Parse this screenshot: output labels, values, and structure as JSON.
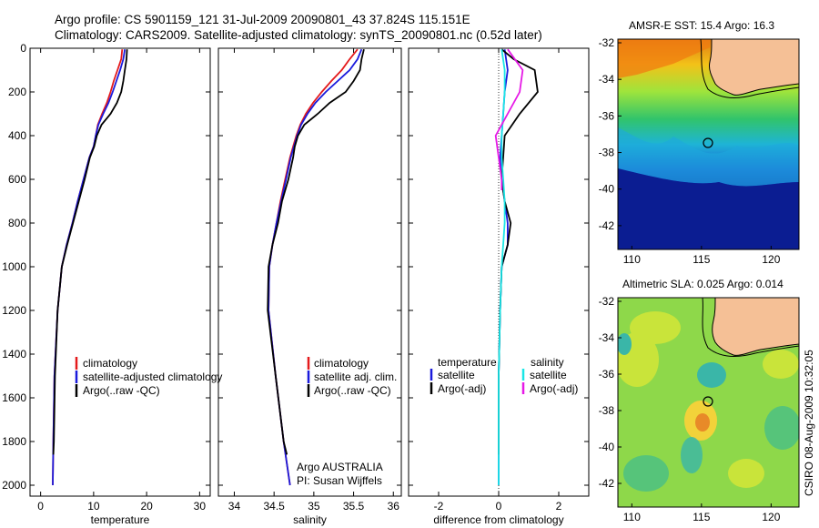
{
  "header": {
    "line1": "Argo profile: CS 5901159_121 31-Jul-2009 20090801_43 37.824S 115.151E",
    "line2": "Climatology: CARS2009. Satellite-adjusted climatology: synTS_20090801.nc (0.52d later)"
  },
  "footer": {
    "stamp": "CSIRO 08-Aug-2009 10:32:05"
  },
  "colors": {
    "climatology": "#e41a1c",
    "satellite": "#1a1adc",
    "argo": "#000000",
    "satellite_diff_salinity": "#19e6e6",
    "argo_diff_salinity": "#e619e6",
    "land": "#f5c096",
    "ocean_deep": "#0a1a8c"
  },
  "chart_data": [
    {
      "type": "line",
      "name": "temperature-profile",
      "xlabel": "temperature",
      "ylabel": "",
      "xlim": [
        -2,
        32
      ],
      "ylim": [
        2050,
        0
      ],
      "xticks": [
        0,
        10,
        20,
        30
      ],
      "yticks": [
        0,
        200,
        400,
        600,
        800,
        1000,
        1200,
        1400,
        1600,
        1800,
        2000
      ],
      "legend": [
        "climatology",
        "satellite-adjusted climatology",
        "Argo(..raw -QC)"
      ],
      "series": [
        {
          "name": "climatology",
          "color": "#e41a1c",
          "x": [
            15.4,
            15.2,
            14.5,
            13.8,
            13.2,
            12.5,
            11.6,
            10.8,
            10.4,
            10.0,
            9.2,
            8.1,
            7.0,
            6.0,
            4.9,
            4.0,
            3.2,
            2.6,
            2.4,
            2.3
          ],
          "y": [
            5,
            50,
            100,
            150,
            200,
            250,
            300,
            350,
            400,
            450,
            500,
            600,
            700,
            800,
            900,
            1000,
            1200,
            1500,
            1800,
            2000
          ]
        },
        {
          "name": "satellite-adjusted climatology",
          "color": "#1a1adc",
          "x": [
            15.9,
            15.6,
            15.0,
            14.3,
            13.6,
            12.8,
            11.8,
            10.9,
            10.4,
            10.0,
            9.2,
            8.1,
            7.0,
            6.0,
            4.9,
            4.0,
            3.2,
            2.6,
            2.4,
            2.3
          ],
          "y": [
            5,
            50,
            100,
            150,
            200,
            250,
            300,
            350,
            400,
            450,
            500,
            600,
            700,
            800,
            900,
            1000,
            1200,
            1500,
            1800,
            2000
          ]
        },
        {
          "name": "Argo(..raw -QC)",
          "color": "#000000",
          "x": [
            16.3,
            16.2,
            15.9,
            15.6,
            15.2,
            14.4,
            13.2,
            11.5,
            10.6,
            10.1,
            9.3,
            8.3,
            7.2,
            6.1,
            5.0,
            4.0,
            3.2,
            2.7,
            2.5,
            2.4
          ],
          "y": [
            5,
            50,
            100,
            150,
            200,
            250,
            300,
            350,
            400,
            450,
            500,
            600,
            700,
            800,
            900,
            1000,
            1200,
            1500,
            1800,
            1860
          ]
        }
      ]
    },
    {
      "type": "line",
      "name": "salinity-profile",
      "xlabel": "salinity",
      "ylabel": "",
      "xlim": [
        33.8,
        36.1
      ],
      "ylim": [
        2050,
        0
      ],
      "xticks": [
        34,
        34.5,
        35,
        35.5,
        36
      ],
      "legend": [
        "climatology",
        "satellite adj. clim.",
        "Argo(..raw -QC)"
      ],
      "annotation": [
        "Argo AUSTRALIA",
        "PI: Susan Wijffels"
      ],
      "series": [
        {
          "name": "climatology",
          "color": "#e41a1c",
          "x": [
            35.55,
            35.45,
            35.35,
            35.22,
            35.1,
            34.99,
            34.9,
            34.83,
            34.78,
            34.74,
            34.7,
            34.64,
            34.58,
            34.53,
            34.48,
            34.44,
            34.43,
            34.52,
            34.62,
            34.7
          ],
          "y": [
            5,
            50,
            100,
            150,
            200,
            250,
            300,
            350,
            400,
            450,
            500,
            600,
            700,
            800,
            900,
            1000,
            1200,
            1500,
            1800,
            2000
          ]
        },
        {
          "name": "satellite adj. clim.",
          "color": "#1a1adc",
          "x": [
            35.6,
            35.55,
            35.45,
            35.3,
            35.15,
            35.02,
            34.92,
            34.84,
            34.79,
            34.75,
            34.71,
            34.65,
            34.59,
            34.53,
            34.48,
            34.44,
            34.43,
            34.52,
            34.62,
            34.7
          ],
          "y": [
            5,
            50,
            100,
            150,
            200,
            250,
            300,
            350,
            400,
            450,
            500,
            600,
            700,
            800,
            900,
            1000,
            1200,
            1500,
            1800,
            2000
          ]
        },
        {
          "name": "Argo(..raw -QC)",
          "color": "#000000",
          "x": [
            35.63,
            35.6,
            35.58,
            35.5,
            35.4,
            35.2,
            35.05,
            34.88,
            34.8,
            34.76,
            34.74,
            34.68,
            34.6,
            34.55,
            34.48,
            34.43,
            34.42,
            34.52,
            34.62,
            34.66
          ],
          "y": [
            5,
            50,
            100,
            150,
            200,
            250,
            300,
            350,
            400,
            450,
            500,
            600,
            700,
            800,
            900,
            1000,
            1200,
            1500,
            1800,
            1860
          ]
        }
      ]
    },
    {
      "type": "line",
      "name": "difference-profile",
      "xlabel": "difference from climatology",
      "ylabel": "",
      "xlim": [
        -3,
        3
      ],
      "ylim": [
        2050,
        0
      ],
      "xticks": [
        -2,
        0,
        2
      ],
      "legend_temperature_heading": "temperature",
      "legend_salinity_heading": "salinity",
      "legend_temperature": [
        "satellite",
        "Argo(-adj)"
      ],
      "legend_salinity": [
        "satellite",
        "Argo(-adj)"
      ],
      "series": [
        {
          "name": "temperature satellite",
          "color": "#1a1adc",
          "x": [
            0.2,
            0.3,
            0.2,
            0.15,
            0.1,
            0.05,
            0.1,
            0.2,
            0.3,
            0.3,
            0.1,
            0.05,
            0.0,
            0.0,
            0.0
          ],
          "y": [
            5,
            100,
            200,
            300,
            400,
            500,
            600,
            700,
            800,
            900,
            1000,
            1200,
            1500,
            1800,
            2000
          ]
        },
        {
          "name": "temperature Argo(-adj)",
          "color": "#000000",
          "x": [
            0.1,
            0.5,
            1.2,
            1.3,
            0.7,
            0.2,
            0.1,
            0.2,
            0.4,
            0.3,
            0.1,
            0.05,
            0.0,
            0.0,
            0.0
          ],
          "y": [
            5,
            50,
            100,
            200,
            300,
            400,
            600,
            700,
            800,
            900,
            1000,
            1200,
            1500,
            1800,
            1860
          ]
        },
        {
          "name": "salinity satellite",
          "color": "#19e6e6",
          "x": [
            0.1,
            0.2,
            0.2,
            0.15,
            0.1,
            0.1,
            0.15,
            0.2,
            0.2,
            0.1,
            0.05,
            0.0,
            0.0
          ],
          "y": [
            5,
            100,
            200,
            300,
            400,
            500,
            600,
            700,
            800,
            1000,
            1200,
            1500,
            2000
          ]
        },
        {
          "name": "salinity Argo(-adj)",
          "color": "#e619e6",
          "x": [
            0.3,
            0.8,
            0.7,
            0.3,
            -0.1,
            0.0,
            0.1,
            0.1
          ],
          "y": [
            5,
            100,
            200,
            300,
            400,
            500,
            600,
            650
          ]
        }
      ]
    },
    {
      "type": "heatmap",
      "name": "sst-map",
      "title": "AMSR-E SST: 15.4 Argo: 16.3",
      "xlim": [
        109,
        122
      ],
      "ylim": [
        -43.3,
        -31.8
      ],
      "xticks": [
        110,
        115,
        120
      ],
      "yticks": [
        -32,
        -34,
        -36,
        -38,
        -40,
        -42
      ],
      "marker": {
        "lon": 115.151,
        "lat": -37.824
      }
    },
    {
      "type": "heatmap",
      "name": "sla-map",
      "title": "Altimetric SLA: 0.025 Argo: 0.014",
      "xlim": [
        109,
        122
      ],
      "ylim": [
        -43.3,
        -31.8
      ],
      "xticks": [
        110,
        115,
        120
      ],
      "yticks": [
        -32,
        -34,
        -36,
        -38,
        -40,
        -42
      ],
      "marker": {
        "lon": 115.151,
        "lat": -37.824
      }
    }
  ]
}
